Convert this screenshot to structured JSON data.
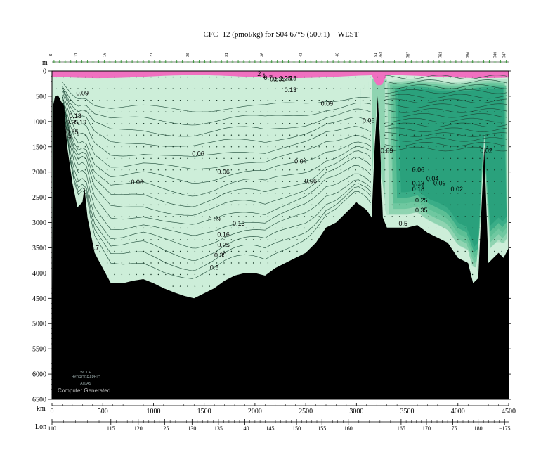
{
  "chart_data": {
    "type": "heatmap",
    "title": "CFC−12 (pmol/kg) for S04 67°S (500:1) − WEST",
    "y_axis": {
      "unit_label": "m",
      "range": [
        0,
        6500
      ],
      "ticks": [
        0,
        500,
        1000,
        1500,
        2000,
        2500,
        3000,
        3500,
        4000,
        4500,
        5000,
        5500,
        6000,
        6500
      ]
    },
    "x_axis_km": {
      "unit_label": "km",
      "range": [
        0,
        4500
      ],
      "ticks": [
        0,
        500,
        1000,
        1500,
        2000,
        2500,
        3000,
        3500,
        4000,
        4500
      ]
    },
    "x_axis_lon": {
      "unit_label": "Lon",
      "ticks": [
        {
          "km": 0,
          "label": "110"
        },
        {
          "km": 580,
          "label": "115"
        },
        {
          "km": 850,
          "label": "120"
        },
        {
          "km": 1110,
          "label": "125"
        },
        {
          "km": 1380,
          "label": "130"
        },
        {
          "km": 1640,
          "label": "135"
        },
        {
          "km": 1900,
          "label": "140"
        },
        {
          "km": 2150,
          "label": "145"
        },
        {
          "km": 2410,
          "label": "150"
        },
        {
          "km": 2660,
          "label": "155"
        },
        {
          "km": 2920,
          "label": "160"
        },
        {
          "km": 3440,
          "label": "165"
        },
        {
          "km": 3690,
          "label": "170"
        },
        {
          "km": 3950,
          "label": "175"
        },
        {
          "km": 4200,
          "label": "180"
        },
        {
          "km": 4460,
          "label": "−175"
        }
      ]
    },
    "stations": [
      {
        "km": 0,
        "label": "6"
      },
      {
        "km": 250,
        "label": "11"
      },
      {
        "km": 530,
        "label": "16"
      },
      {
        "km": 990,
        "label": "21"
      },
      {
        "km": 1350,
        "label": "26"
      },
      {
        "km": 1730,
        "label": "31"
      },
      {
        "km": 2080,
        "label": "36"
      },
      {
        "km": 2460,
        "label": "41"
      },
      {
        "km": 2820,
        "label": "46"
      },
      {
        "km": 3200,
        "label": "51"
      },
      {
        "km": 3250,
        "label": "752"
      },
      {
        "km": 3520,
        "label": "767"
      },
      {
        "km": 3840,
        "label": "762"
      },
      {
        "km": 4110,
        "label": "756"
      },
      {
        "km": 4380,
        "label": "749"
      },
      {
        "km": 4470,
        "label": "747"
      }
    ],
    "contour_levels": [
      0.02,
      0.04,
      0.06,
      0.09,
      0.13,
      0.16,
      0.18,
      0.25,
      0.35,
      0.5,
      0.7,
      1,
      2,
      3,
      4,
      5
    ],
    "contour_labels": [
      {
        "text": "0.09",
        "km": 300,
        "depth": 480
      },
      {
        "text": "0.18",
        "km": 230,
        "depth": 930
      },
      {
        "text": "0.25",
        "km": 200,
        "depth": 1060
      },
      {
        "text": "0.13",
        "km": 280,
        "depth": 1060
      },
      {
        "text": "0.35",
        "km": 200,
        "depth": 1250
      },
      {
        "text": "0.5",
        "km": 150,
        "depth": 1330
      },
      {
        "text": "0.7",
        "km": 420,
        "depth": 3540
      },
      {
        "text": "0.06",
        "km": 1440,
        "depth": 1680
      },
      {
        "text": "0.06",
        "km": 1690,
        "depth": 2040
      },
      {
        "text": "0.06",
        "km": 840,
        "depth": 2240
      },
      {
        "text": "0.09",
        "km": 1600,
        "depth": 2980
      },
      {
        "text": "0.13",
        "km": 1840,
        "depth": 3060
      },
      {
        "text": "0.16",
        "km": 1690,
        "depth": 3280
      },
      {
        "text": "0.25",
        "km": 1690,
        "depth": 3490
      },
      {
        "text": "0.35",
        "km": 1660,
        "depth": 3690
      },
      {
        "text": "0.5",
        "km": 1600,
        "depth": 3930
      },
      {
        "text": "0.04",
        "km": 2450,
        "depth": 1830
      },
      {
        "text": "0.06",
        "km": 2550,
        "depth": 2220
      },
      {
        "text": "0.09",
        "km": 2710,
        "depth": 690
      },
      {
        "text": "0.13",
        "km": 2350,
        "depth": 420
      },
      {
        "text": "0.06",
        "km": 3120,
        "depth": 1020
      },
      {
        "text": "0.09",
        "km": 3300,
        "depth": 1620
      },
      {
        "text": "0.06",
        "km": 3610,
        "depth": 2000
      },
      {
        "text": "0.04",
        "km": 3750,
        "depth": 2170
      },
      {
        "text": "0.13",
        "km": 3610,
        "depth": 2260
      },
      {
        "text": "0.09",
        "km": 3820,
        "depth": 2260
      },
      {
        "text": "0.18",
        "km": 3610,
        "depth": 2380
      },
      {
        "text": "0.02",
        "km": 3990,
        "depth": 2380
      },
      {
        "text": "0.25",
        "km": 3640,
        "depth": 2600
      },
      {
        "text": "0.35",
        "km": 3640,
        "depth": 2800
      },
      {
        "text": "0.5",
        "km": 3460,
        "depth": 3060
      },
      {
        "text": "0.02",
        "km": 4280,
        "depth": 1620
      },
      {
        "text": "2",
        "km": 2040,
        "depth": 95
      },
      {
        "text": "1",
        "km": 2090,
        "depth": 140
      },
      {
        "text": "0.7",
        "km": 2130,
        "depth": 180
      },
      {
        "text": "0.5",
        "km": 2190,
        "depth": 200
      },
      {
        "text": "0.35",
        "km": 2240,
        "depth": 200
      },
      {
        "text": "0.25",
        "km": 2300,
        "depth": 190
      },
      {
        "text": "0.18",
        "km": 2350,
        "depth": 190
      }
    ],
    "color_bands": [
      {
        "min": 0.0,
        "max": 0.04,
        "color": "#2aa17c"
      },
      {
        "min": 0.04,
        "max": 0.06,
        "color": "#3aad87"
      },
      {
        "min": 0.06,
        "max": 0.09,
        "color": "#5cbf95"
      },
      {
        "min": 0.09,
        "max": 0.13,
        "color": "#6fc8a0"
      },
      {
        "min": 0.13,
        "max": 0.25,
        "color": "#8fd4b1"
      },
      {
        "min": 0.25,
        "max": 0.5,
        "color": "#b4e3c9"
      },
      {
        "min": 0.5,
        "max": 1.0,
        "color": "#cdeed9"
      },
      {
        "min": 1.0,
        "max": 5.0,
        "color": "#f070c0"
      }
    ],
    "bathymetry": [
      [
        0,
        6500
      ],
      [
        10,
        700
      ],
      [
        30,
        500
      ],
      [
        60,
        480
      ],
      [
        90,
        600
      ],
      [
        120,
        700
      ],
      [
        150,
        1500
      ],
      [
        200,
        2200
      ],
      [
        250,
        2700
      ],
      [
        300,
        2600
      ],
      [
        320,
        2300
      ],
      [
        350,
        2900
      ],
      [
        420,
        3600
      ],
      [
        500,
        3900
      ],
      [
        580,
        4200
      ],
      [
        700,
        4200
      ],
      [
        800,
        4150
      ],
      [
        900,
        4120
      ],
      [
        1000,
        4200
      ],
      [
        1100,
        4300
      ],
      [
        1200,
        4380
      ],
      [
        1300,
        4450
      ],
      [
        1400,
        4500
      ],
      [
        1500,
        4400
      ],
      [
        1600,
        4300
      ],
      [
        1700,
        4150
      ],
      [
        1800,
        4050
      ],
      [
        1900,
        4000
      ],
      [
        2000,
        4000
      ],
      [
        2100,
        4050
      ],
      [
        2200,
        3900
      ],
      [
        2300,
        3800
      ],
      [
        2400,
        3700
      ],
      [
        2500,
        3600
      ],
      [
        2600,
        3400
      ],
      [
        2700,
        3100
      ],
      [
        2800,
        3000
      ],
      [
        2900,
        2800
      ],
      [
        3000,
        2600
      ],
      [
        3100,
        2750
      ],
      [
        3150,
        2900
      ],
      [
        3180,
        1500
      ],
      [
        3210,
        500
      ],
      [
        3230,
        1300
      ],
      [
        3260,
        2900
      ],
      [
        3300,
        3100
      ],
      [
        3400,
        3100
      ],
      [
        3500,
        3100
      ],
      [
        3600,
        3050
      ],
      [
        3700,
        3200
      ],
      [
        3800,
        3300
      ],
      [
        3900,
        3400
      ],
      [
        4000,
        3700
      ],
      [
        4100,
        3800
      ],
      [
        4150,
        4200
      ],
      [
        4200,
        4100
      ],
      [
        4260,
        1500
      ],
      [
        4300,
        3800
      ],
      [
        4400,
        3600
      ],
      [
        4450,
        3700
      ],
      [
        4500,
        3500
      ],
      [
        4500,
        6500
      ]
    ]
  },
  "watermark": {
    "line1": "WOCE",
    "line2": "HYDROGRAPHIC",
    "line3": "ATLAS",
    "credit": "Computer Generated"
  }
}
